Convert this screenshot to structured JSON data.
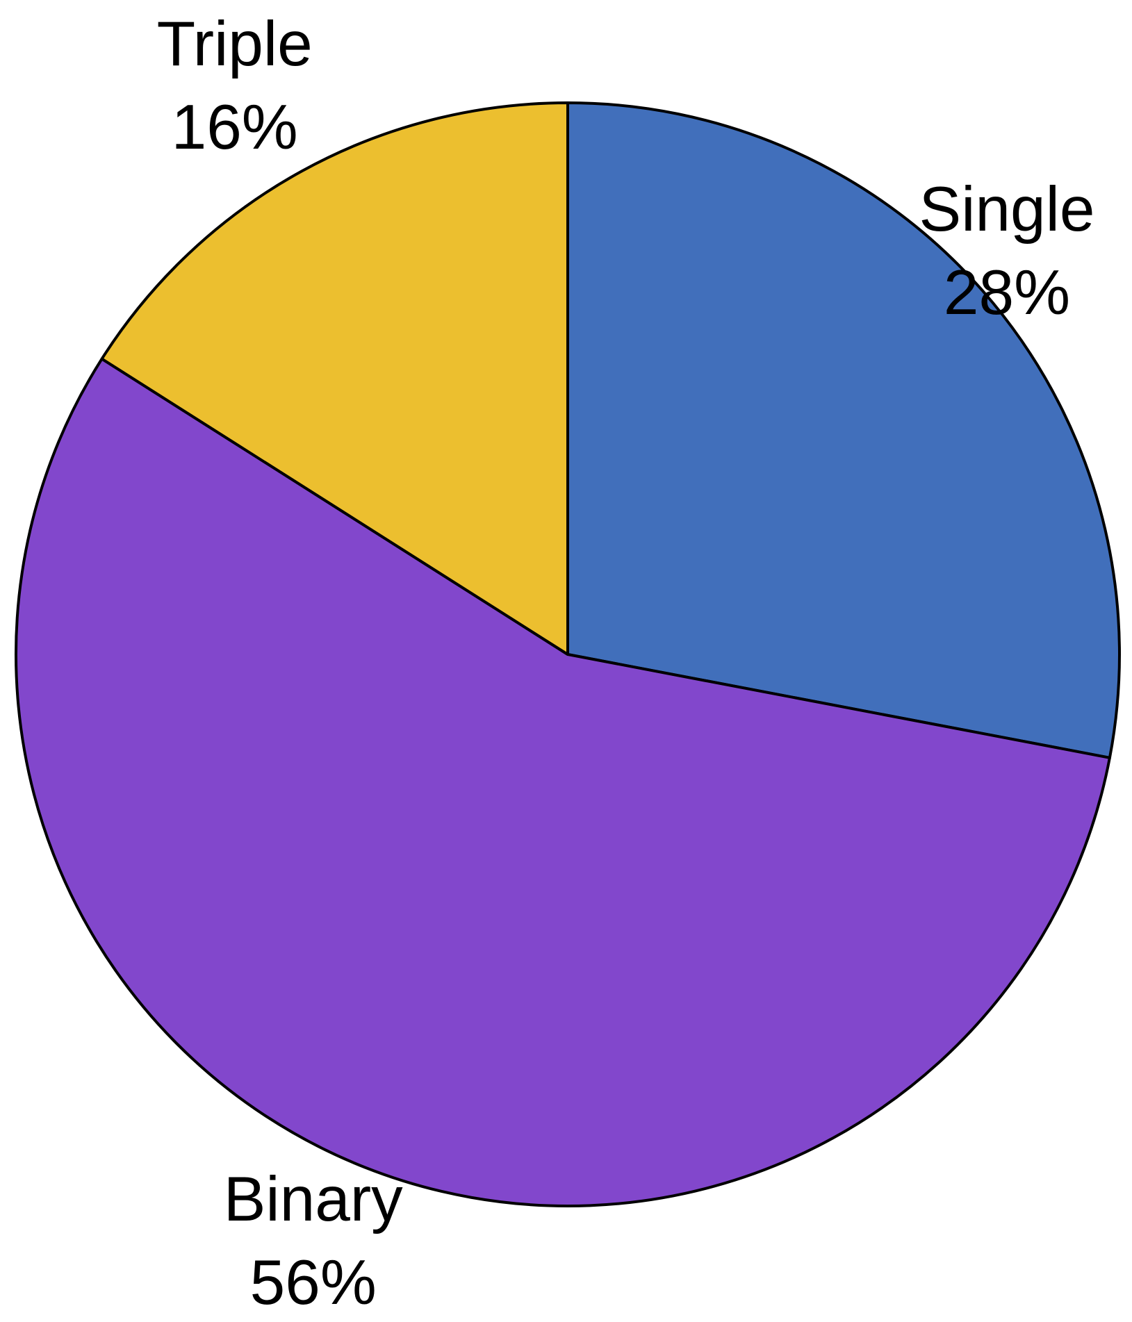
{
  "chart_data": {
    "type": "pie",
    "categories": [
      "Single",
      "Binary",
      "Triple"
    ],
    "values": [
      28,
      56,
      16
    ],
    "value_labels": [
      "28%",
      "56%",
      "16%"
    ],
    "colors": [
      "#416fbb",
      "#8247cc",
      "#ecbf2f"
    ]
  }
}
